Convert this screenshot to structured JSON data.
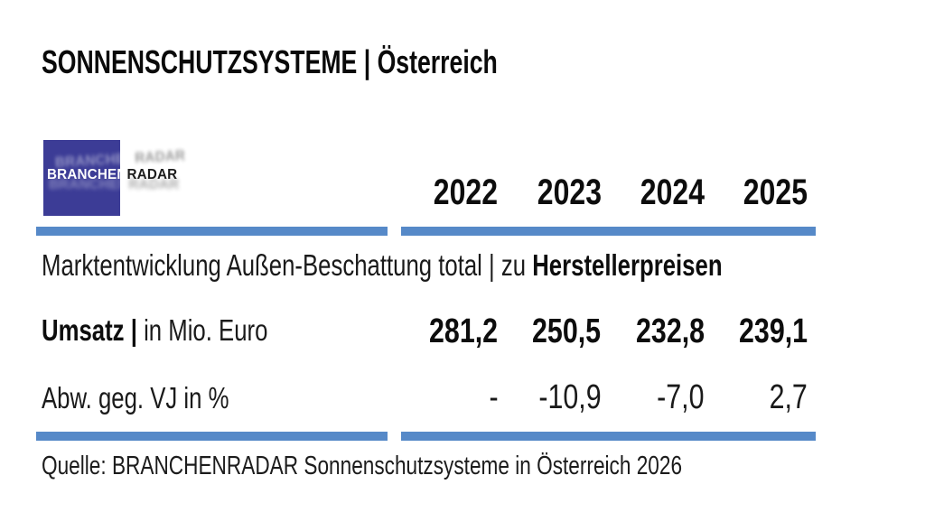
{
  "title": "SONNENSCHUTZSYSTEME | Österreich",
  "logo": {
    "brand_left": "BRANCHEN",
    "brand_right": "RADAR"
  },
  "table": {
    "years": [
      "2022",
      "2023",
      "2024",
      "2025"
    ],
    "subtitle_regular": "Marktentwicklung Außen-Beschattung total | zu ",
    "subtitle_bold": "Herstellerpreisen",
    "rows": [
      {
        "label_bold": "Umsatz | ",
        "label_regular": "in Mio. Euro",
        "values": [
          "281,2",
          "250,5",
          "232,8",
          "239,1"
        ]
      },
      {
        "label_bold": "",
        "label_regular": "Abw. geg. VJ in %",
        "values": [
          "-",
          "-10,9",
          "-7,0",
          "2,7"
        ]
      }
    ]
  },
  "source": "Quelle: BRANCHENRADAR Sonnenschutzsysteme in Österreich 2026",
  "colors": {
    "rule_blue": "#5689c8",
    "logo_blue": "#3c3c96",
    "text": "#1a1a1a"
  },
  "chart_data": {
    "type": "table",
    "title": "SONNENSCHUTZSYSTEME | Österreich",
    "subtitle": "Marktentwicklung Außen-Beschattung total | zu Herstellerpreisen",
    "categories": [
      "2022",
      "2023",
      "2024",
      "2025"
    ],
    "series": [
      {
        "name": "Umsatz | in Mio. Euro",
        "values": [
          281.2,
          250.5,
          232.8,
          239.1
        ]
      },
      {
        "name": "Abw. geg. VJ in %",
        "values": [
          null,
          -10.9,
          -7.0,
          2.7
        ]
      }
    ],
    "source": "Quelle: BRANCHENRADAR Sonnenschutzsysteme in Österreich 2026",
    "legend_position": "none",
    "grid": false
  }
}
